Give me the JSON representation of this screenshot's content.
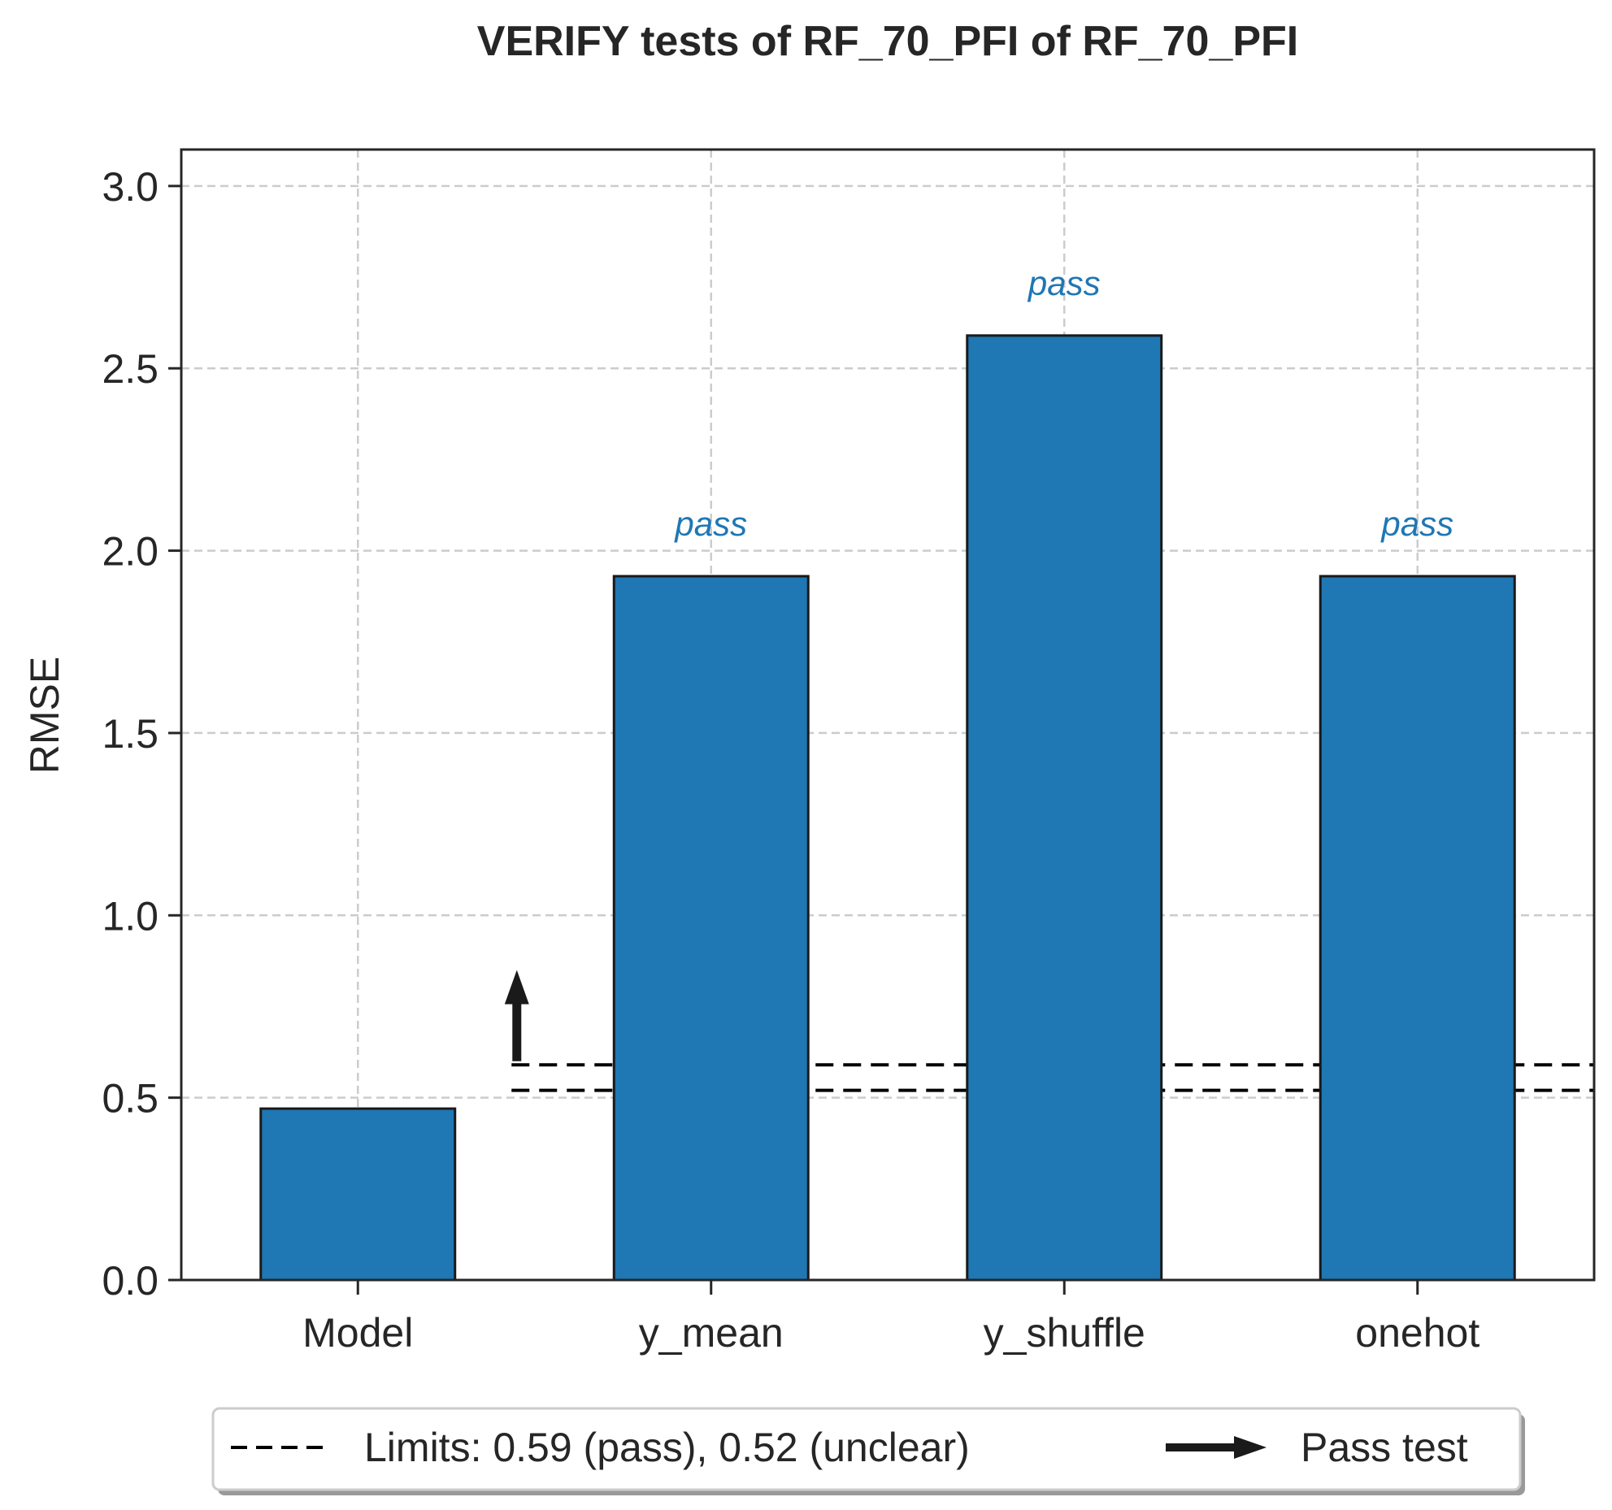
{
  "chart_data": {
    "type": "bar",
    "title": "VERIFY tests of RF_70_PFI of RF_70_PFI",
    "xlabel": "",
    "ylabel": "RMSE",
    "ylim": [
      0,
      3.1
    ],
    "yticks": [
      "0.0",
      "0.5",
      "1.0",
      "1.5",
      "2.0",
      "2.5",
      "3.0"
    ],
    "categories": [
      "Model",
      "y_mean",
      "y_shuffle",
      "onehot"
    ],
    "values": [
      0.47,
      1.93,
      2.59,
      1.93
    ],
    "annotations": [
      "",
      "pass",
      "pass",
      "pass"
    ],
    "bar_color": "#1f77b4",
    "annotation_color": "#1f77b4",
    "grid": true,
    "limits": {
      "pass": 0.59,
      "unclear": 0.52,
      "line_style": "dashed",
      "color": "#000000"
    },
    "pass_arrow": {
      "direction": "up",
      "from": 0.6,
      "to": 0.85,
      "color": "#1a1a1a"
    },
    "legend": {
      "placement": "bottom-center",
      "entries": [
        {
          "label": "Limits: 0.59 (pass), 0.52 (unclear)",
          "marker": "dashed-line"
        },
        {
          "label": "Pass test",
          "marker": "arrow"
        }
      ]
    }
  }
}
